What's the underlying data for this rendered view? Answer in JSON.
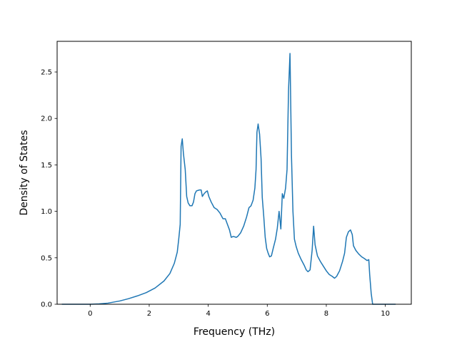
{
  "chart_data": {
    "type": "line",
    "title": "",
    "xlabel": "Frequency (THz)",
    "ylabel": "Density of States",
    "xlim": [
      -1.12,
      10.88
    ],
    "ylim": [
      0.0,
      2.83
    ],
    "xticks": [
      0,
      2,
      4,
      6,
      8,
      10
    ],
    "yticks": [
      0.0,
      0.5,
      1.0,
      1.5,
      2.0,
      2.5
    ],
    "xtick_labels": [
      "0",
      "2",
      "4",
      "6",
      "8",
      "10"
    ],
    "ytick_labels": [
      "0.0",
      "0.5",
      "1.0",
      "1.5",
      "2.0",
      "2.5"
    ],
    "grid": false,
    "legend": "none",
    "colors": {
      "line": "#1f77b4",
      "axes": "#000000",
      "background": "#ffffff"
    },
    "series": [
      {
        "points": [
          [
            -0.96,
            0.0
          ],
          [
            -0.5,
            0.0
          ],
          [
            0.0,
            0.0
          ],
          [
            0.3,
            0.004
          ],
          [
            0.6,
            0.012
          ],
          [
            1.0,
            0.035
          ],
          [
            1.3,
            0.06
          ],
          [
            1.6,
            0.09
          ],
          [
            1.9,
            0.125
          ],
          [
            2.2,
            0.175
          ],
          [
            2.5,
            0.25
          ],
          [
            2.7,
            0.33
          ],
          [
            2.85,
            0.44
          ],
          [
            2.95,
            0.56
          ],
          [
            3.0,
            0.7
          ],
          [
            3.05,
            0.86
          ],
          [
            3.08,
            1.7
          ],
          [
            3.12,
            1.78
          ],
          [
            3.16,
            1.62
          ],
          [
            3.22,
            1.45
          ],
          [
            3.27,
            1.16
          ],
          [
            3.32,
            1.09
          ],
          [
            3.38,
            1.06
          ],
          [
            3.45,
            1.06
          ],
          [
            3.5,
            1.1
          ],
          [
            3.55,
            1.19
          ],
          [
            3.6,
            1.22
          ],
          [
            3.7,
            1.23
          ],
          [
            3.76,
            1.23
          ],
          [
            3.8,
            1.16
          ],
          [
            3.86,
            1.19
          ],
          [
            3.92,
            1.21
          ],
          [
            3.97,
            1.22
          ],
          [
            4.02,
            1.16
          ],
          [
            4.1,
            1.1
          ],
          [
            4.2,
            1.04
          ],
          [
            4.3,
            1.02
          ],
          [
            4.4,
            0.98
          ],
          [
            4.5,
            0.92
          ],
          [
            4.58,
            0.92
          ],
          [
            4.65,
            0.86
          ],
          [
            4.72,
            0.8
          ],
          [
            4.78,
            0.72
          ],
          [
            4.85,
            0.73
          ],
          [
            4.95,
            0.72
          ],
          [
            5.0,
            0.73
          ],
          [
            5.1,
            0.77
          ],
          [
            5.2,
            0.84
          ],
          [
            5.3,
            0.94
          ],
          [
            5.38,
            1.04
          ],
          [
            5.45,
            1.06
          ],
          [
            5.52,
            1.12
          ],
          [
            5.58,
            1.25
          ],
          [
            5.62,
            1.45
          ],
          [
            5.65,
            1.85
          ],
          [
            5.69,
            1.94
          ],
          [
            5.74,
            1.83
          ],
          [
            5.79,
            1.57
          ],
          [
            5.83,
            1.15
          ],
          [
            5.88,
            0.95
          ],
          [
            5.93,
            0.72
          ],
          [
            5.98,
            0.6
          ],
          [
            6.03,
            0.55
          ],
          [
            6.08,
            0.51
          ],
          [
            6.14,
            0.52
          ],
          [
            6.2,
            0.6
          ],
          [
            6.28,
            0.7
          ],
          [
            6.34,
            0.82
          ],
          [
            6.4,
            1.0
          ],
          [
            6.46,
            0.81
          ],
          [
            6.51,
            1.19
          ],
          [
            6.56,
            1.14
          ],
          [
            6.62,
            1.25
          ],
          [
            6.67,
            1.45
          ],
          [
            6.72,
            2.3
          ],
          [
            6.77,
            2.7
          ],
          [
            6.82,
            1.6
          ],
          [
            6.87,
            1.0
          ],
          [
            6.92,
            0.7
          ],
          [
            6.98,
            0.62
          ],
          [
            7.05,
            0.55
          ],
          [
            7.15,
            0.48
          ],
          [
            7.25,
            0.42
          ],
          [
            7.32,
            0.37
          ],
          [
            7.38,
            0.35
          ],
          [
            7.45,
            0.37
          ],
          [
            7.52,
            0.58
          ],
          [
            7.57,
            0.84
          ],
          [
            7.62,
            0.64
          ],
          [
            7.7,
            0.52
          ],
          [
            7.8,
            0.46
          ],
          [
            7.9,
            0.41
          ],
          [
            8.0,
            0.36
          ],
          [
            8.1,
            0.32
          ],
          [
            8.2,
            0.3
          ],
          [
            8.28,
            0.28
          ],
          [
            8.35,
            0.3
          ],
          [
            8.45,
            0.36
          ],
          [
            8.55,
            0.46
          ],
          [
            8.62,
            0.55
          ],
          [
            8.68,
            0.72
          ],
          [
            8.75,
            0.78
          ],
          [
            8.82,
            0.8
          ],
          [
            8.88,
            0.75
          ],
          [
            8.92,
            0.63
          ],
          [
            9.0,
            0.58
          ],
          [
            9.1,
            0.54
          ],
          [
            9.2,
            0.51
          ],
          [
            9.3,
            0.49
          ],
          [
            9.38,
            0.47
          ],
          [
            9.44,
            0.48
          ],
          [
            9.47,
            0.32
          ],
          [
            9.52,
            0.12
          ],
          [
            9.57,
            0.0
          ],
          [
            9.8,
            0.0
          ],
          [
            10.0,
            0.0
          ],
          [
            10.35,
            0.0
          ]
        ]
      }
    ]
  }
}
